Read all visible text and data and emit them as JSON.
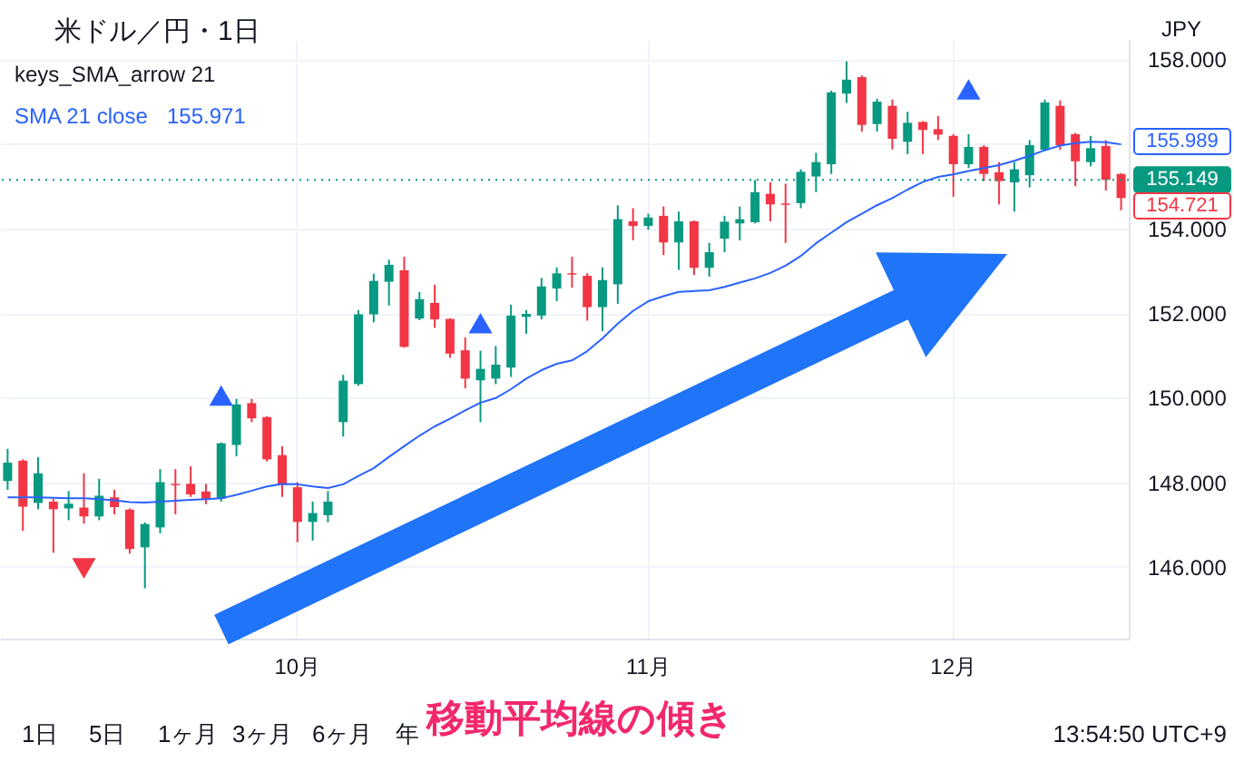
{
  "chart_data": {
    "type": "candlestick",
    "title": "米ドル／円・1日",
    "subtitle": "keys_SMA_arrow 21",
    "categories": [
      null,
      null,
      null,
      null,
      null,
      null,
      null,
      null,
      null,
      null,
      null,
      null,
      null,
      null,
      null,
      null,
      null,
      null,
      null,
      "10月",
      null,
      null,
      null,
      null,
      null,
      null,
      null,
      null,
      null,
      null,
      null,
      null,
      null,
      null,
      null,
      null,
      null,
      null,
      null,
      null,
      null,
      null,
      "11月",
      null,
      null,
      null,
      null,
      null,
      null,
      null,
      null,
      null,
      null,
      null,
      null,
      null,
      null,
      null,
      null,
      null,
      null,
      null,
      "12月",
      null,
      null,
      null,
      null,
      null,
      null,
      null,
      null,
      null,
      null,
      null
    ],
    "ohlc": [
      [
        148.03,
        148.79,
        147.82,
        148.46
      ],
      [
        148.51,
        148.54,
        146.85,
        147.42
      ],
      [
        147.51,
        148.59,
        147.36,
        148.21
      ],
      [
        147.54,
        147.61,
        146.33,
        147.36
      ],
      [
        147.38,
        147.79,
        147.1,
        147.49
      ],
      [
        147.4,
        148.21,
        147.02,
        147.19
      ],
      [
        147.19,
        148.08,
        147.1,
        147.68
      ],
      [
        147.64,
        147.82,
        147.24,
        147.41
      ],
      [
        147.35,
        147.38,
        146.31,
        146.42
      ],
      [
        146.46,
        147.05,
        145.49,
        147.01
      ],
      [
        146.93,
        148.31,
        146.79,
        148.0
      ],
      [
        147.96,
        148.31,
        147.24,
        147.93
      ],
      [
        147.96,
        148.38,
        147.65,
        147.71
      ],
      [
        147.78,
        147.96,
        147.48,
        147.61
      ],
      [
        147.61,
        148.94,
        147.54,
        148.92
      ],
      [
        148.88,
        149.97,
        148.61,
        149.84
      ],
      [
        149.87,
        149.97,
        149.42,
        149.51
      ],
      [
        149.54,
        149.56,
        148.49,
        148.54
      ],
      [
        148.64,
        148.85,
        147.65,
        147.94
      ],
      [
        147.88,
        148.0,
        146.58,
        147.06
      ],
      [
        147.06,
        147.54,
        146.62,
        147.27
      ],
      [
        147.22,
        147.79,
        147.05,
        147.54
      ],
      [
        149.42,
        150.54,
        149.08,
        150.4
      ],
      [
        150.32,
        152.07,
        150.28,
        151.97
      ],
      [
        151.97,
        152.93,
        151.78,
        152.76
      ],
      [
        152.74,
        153.26,
        152.18,
        153.14
      ],
      [
        153.01,
        153.33,
        151.18,
        151.2
      ],
      [
        151.87,
        152.5,
        151.83,
        152.33
      ],
      [
        152.24,
        152.67,
        151.65,
        151.85
      ],
      [
        151.86,
        151.88,
        150.94,
        151.04
      ],
      [
        151.12,
        151.42,
        150.22,
        150.45
      ],
      [
        150.41,
        151.11,
        149.42,
        150.68
      ],
      [
        150.45,
        151.22,
        150.32,
        150.78
      ],
      [
        150.71,
        152.2,
        150.49,
        151.94
      ],
      [
        151.91,
        152.07,
        151.51,
        151.98
      ],
      [
        151.94,
        152.83,
        151.85,
        152.63
      ],
      [
        152.58,
        153.08,
        152.28,
        152.94
      ],
      [
        152.94,
        153.33,
        152.6,
        152.91
      ],
      [
        152.88,
        152.94,
        151.82,
        152.14
      ],
      [
        152.14,
        153.08,
        151.57,
        152.78
      ],
      [
        152.68,
        154.55,
        152.22,
        154.22
      ],
      [
        154.17,
        154.48,
        153.72,
        154.06
      ],
      [
        154.06,
        154.35,
        153.97,
        154.26
      ],
      [
        154.3,
        154.52,
        153.37,
        153.67
      ],
      [
        153.67,
        154.4,
        153.02,
        154.17
      ],
      [
        154.17,
        154.19,
        152.9,
        153.07
      ],
      [
        153.07,
        153.66,
        152.86,
        153.44
      ],
      [
        153.76,
        154.3,
        153.44,
        154.16
      ],
      [
        154.12,
        154.52,
        153.72,
        154.22
      ],
      [
        154.15,
        155.15,
        154.12,
        154.86
      ],
      [
        154.82,
        155.09,
        154.17,
        154.57
      ],
      [
        154.59,
        155.06,
        153.66,
        154.56
      ],
      [
        154.6,
        155.4,
        154.48,
        155.34
      ],
      [
        155.23,
        155.79,
        154.86,
        155.57
      ],
      [
        155.52,
        157.26,
        155.29,
        157.22
      ],
      [
        157.19,
        157.95,
        156.97,
        157.52
      ],
      [
        157.58,
        157.62,
        156.29,
        156.45
      ],
      [
        156.47,
        157.07,
        156.29,
        157.0
      ],
      [
        156.9,
        157.05,
        155.87,
        156.12
      ],
      [
        156.05,
        156.76,
        155.76,
        156.5
      ],
      [
        156.52,
        156.54,
        155.76,
        156.33
      ],
      [
        156.35,
        156.66,
        156.09,
        156.22
      ],
      [
        156.19,
        156.23,
        154.75,
        155.52
      ],
      [
        155.52,
        156.23,
        155.43,
        155.93
      ],
      [
        155.93,
        155.97,
        155.12,
        155.29
      ],
      [
        155.33,
        155.57,
        154.57,
        155.12
      ],
      [
        155.09,
        155.57,
        154.4,
        155.4
      ],
      [
        155.26,
        156.09,
        154.97,
        155.97
      ],
      [
        155.86,
        157.05,
        155.83,
        156.98
      ],
      [
        156.9,
        157.03,
        155.86,
        155.97
      ],
      [
        156.23,
        156.26,
        155.0,
        155.59
      ],
      [
        155.57,
        156.19,
        155.47,
        155.9
      ],
      [
        155.95,
        156.09,
        154.9,
        155.15
      ],
      [
        155.29,
        155.31,
        154.43,
        154.72
      ]
    ],
    "colors": [
      "#089981",
      "#f23645",
      "#089981",
      "#f23645",
      "#089981",
      "#f23645",
      "#089981",
      "#f23645",
      "#f23645",
      "#089981",
      "#089981",
      "#f23645",
      "#f23645",
      "#f23645",
      "#089981",
      "#089981",
      "#f23645",
      "#f23645",
      "#f23645",
      "#f23645",
      "#089981",
      "#089981",
      "#089981",
      "#089981",
      "#089981",
      "#089981",
      "#f23645",
      "#089981",
      "#f23645",
      "#f23645",
      "#f23645",
      "#089981",
      "#089981",
      "#089981",
      "#089981",
      "#089981",
      "#089981",
      "#f23645",
      "#f23645",
      "#089981",
      "#089981",
      "#f23645",
      "#089981",
      "#f23645",
      "#089981",
      "#f23645",
      "#089981",
      "#089981",
      "#089981",
      "#089981",
      "#f23645",
      "#f23645",
      "#089981",
      "#089981",
      "#089981",
      "#089981",
      "#f23645",
      "#089981",
      "#f23645",
      "#089981",
      "#f23645",
      "#f23645",
      "#f23645",
      "#089981",
      "#f23645",
      "#f23645",
      "#089981",
      "#089981",
      "#089981",
      "#f23645",
      "#f23645",
      "#089981",
      "#f23645",
      "#f23645"
    ],
    "series": [
      {
        "name": "SMA 21 close",
        "type": "line",
        "color": "#2962ff",
        "values": [
          147.64,
          147.64,
          147.64,
          147.63,
          147.62,
          147.62,
          147.6,
          147.57,
          147.53,
          147.52,
          147.54,
          147.56,
          147.58,
          147.6,
          147.62,
          147.7,
          147.8,
          147.9,
          147.96,
          147.95,
          147.9,
          147.86,
          147.95,
          148.15,
          148.33,
          148.6,
          148.85,
          149.1,
          149.32,
          149.5,
          149.7,
          149.88,
          149.99,
          150.2,
          150.45,
          150.65,
          150.8,
          150.88,
          151.1,
          151.4,
          151.75,
          152.05,
          152.28,
          152.4,
          152.5,
          152.52,
          152.54,
          152.62,
          152.72,
          152.82,
          152.95,
          153.12,
          153.35,
          153.65,
          153.9,
          154.15,
          154.35,
          154.55,
          154.72,
          154.92,
          155.1,
          155.22,
          155.28,
          155.36,
          155.43,
          155.5,
          155.6,
          155.72,
          155.85,
          155.96,
          156.02,
          156.05,
          156.04,
          155.99
        ]
      },
      {
        "type": "scatter",
        "marker": "triangle",
        "color": "#2962ff",
        "values": [
          null,
          null,
          null,
          null,
          null,
          null,
          null,
          null,
          null,
          null,
          null,
          null,
          null,
          null,
          150.05,
          null,
          null,
          null,
          null,
          null,
          null,
          null,
          null,
          null,
          null,
          null,
          null,
          null,
          null,
          null,
          null,
          151.76,
          null,
          null,
          null,
          null,
          null,
          null,
          null,
          null,
          null,
          null,
          null,
          null,
          null,
          null,
          null,
          null,
          null,
          null,
          null,
          null,
          null,
          null,
          null,
          null,
          null,
          null,
          null,
          null,
          null,
          null,
          null,
          157.29,
          null,
          null,
          null,
          null,
          null,
          null,
          null,
          null,
          null,
          null
        ]
      },
      {
        "type": "scatter",
        "marker": "triangle-down",
        "color": "#f23645",
        "values": [
          null,
          null,
          null,
          null,
          null,
          145.96,
          null,
          null,
          null,
          null,
          null,
          null,
          null,
          null,
          null,
          null,
          null,
          null,
          null,
          null,
          null,
          null,
          null,
          null,
          null,
          null,
          null,
          null,
          null,
          null,
          null,
          null,
          null,
          null,
          null,
          null,
          null,
          null,
          null,
          null,
          null,
          null,
          null,
          null,
          null,
          null,
          null,
          null,
          null,
          null,
          null,
          null,
          null,
          null,
          null,
          null,
          null,
          null,
          null,
          null,
          null,
          null,
          null,
          null,
          null,
          null,
          null,
          null,
          null,
          null,
          null,
          null,
          null,
          null
        ]
      }
    ],
    "ylim": [
      144.3,
      158.46
    ],
    "yticks": [
      {
        "value": 146,
        "label": "146.000"
      },
      {
        "value": 148,
        "label": "148.000"
      },
      {
        "value": 150,
        "label": "150.000"
      },
      {
        "value": 152,
        "label": "152.000"
      },
      {
        "value": 154,
        "label": "154.000"
      },
      {
        "value": 156,
        "label": null
      },
      {
        "value": 158,
        "label": "158.000"
      }
    ],
    "grid": true,
    "legend": "top left",
    "ref_lines": [
      {
        "axis": "y",
        "value": 155.149,
        "label": "155.149",
        "color": "#089981",
        "line_style": "dotted"
      }
    ],
    "annotations": [
      "155.971",
      "155.989",
      "154.721",
      "JPY",
      "移動平均線の傾き",
      "1日",
      "5日",
      "1ヶ月",
      "3ヶ月",
      "6ヶ月",
      "年",
      "13:54:50 UTC+9"
    ]
  }
}
